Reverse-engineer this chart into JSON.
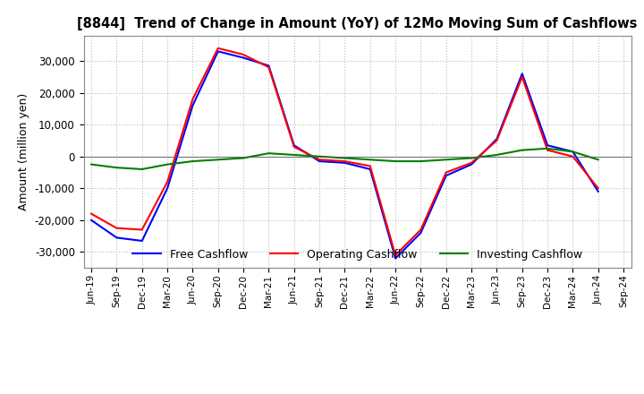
{
  "title": "[8844]  Trend of Change in Amount (YoY) of 12Mo Moving Sum of Cashflows",
  "ylabel": "Amount (million yen)",
  "ylim": [
    -35000,
    38000
  ],
  "yticks": [
    -30000,
    -20000,
    -10000,
    0,
    10000,
    20000,
    30000
  ],
  "x_labels": [
    "Jun-19",
    "Sep-19",
    "Dec-19",
    "Mar-20",
    "Jun-20",
    "Sep-20",
    "Dec-20",
    "Mar-21",
    "Jun-21",
    "Sep-21",
    "Dec-21",
    "Mar-22",
    "Jun-22",
    "Sep-22",
    "Dec-22",
    "Mar-23",
    "Jun-23",
    "Sep-23",
    "Dec-23",
    "Mar-24",
    "Jun-24",
    "Sep-24"
  ],
  "operating": [
    -18000,
    -22500,
    -23000,
    -8000,
    18000,
    34000,
    32000,
    28000,
    3000,
    -1000,
    -1500,
    -3000,
    -31000,
    -23000,
    -5000,
    -2000,
    5000,
    25000,
    2000,
    0,
    -10000,
    null
  ],
  "investing": [
    -2500,
    -3500,
    -4000,
    -2500,
    -1500,
    -1000,
    -500,
    1000,
    500,
    0,
    -500,
    -1000,
    -1500,
    -1500,
    -1000,
    -500,
    500,
    2000,
    2500,
    1500,
    -1000,
    null
  ],
  "free": [
    -20000,
    -25500,
    -26500,
    -10000,
    16000,
    33000,
    31000,
    28500,
    3500,
    -1500,
    -2000,
    -4000,
    -32000,
    -24000,
    -6000,
    -2500,
    5500,
    26000,
    3500,
    1500,
    -11000,
    null
  ],
  "operating_color": "#ff0000",
  "investing_color": "#008000",
  "free_color": "#0000ff",
  "legend_labels": [
    "Operating Cashflow",
    "Investing Cashflow",
    "Free Cashflow"
  ],
  "bg_color": "#ffffff",
  "grid_color": "#bbbbbb"
}
